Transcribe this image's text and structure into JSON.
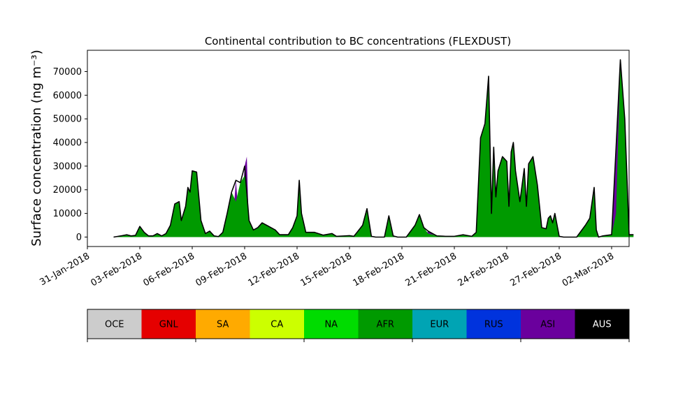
{
  "chart_data": {
    "type": "area",
    "title": "Continental contribution to BC concentrations (FLEXDUST)",
    "ylabel": "Surface concentration (ng m⁻³)",
    "xlabel": "",
    "ylim": [
      -4000,
      79000
    ],
    "xlim": [
      "2018-01-31",
      "2018-03-03"
    ],
    "yticks": [
      0,
      10000,
      20000,
      30000,
      40000,
      50000,
      60000,
      70000
    ],
    "xticks": [
      "31-Jan-2018",
      "03-Feb-2018",
      "06-Feb-2018",
      "09-Feb-2018",
      "12-Feb-2018",
      "15-Feb-2018",
      "18-Feb-2018",
      "21-Feb-2018",
      "24-Feb-2018",
      "27-Feb-2018",
      "02-Mar-2018"
    ],
    "xtick_dates": [
      "2018-01-31",
      "2018-02-03",
      "2018-02-06",
      "2018-02-09",
      "2018-02-12",
      "2018-02-15",
      "2018-02-18",
      "2018-02-21",
      "2018-02-24",
      "2018-02-27",
      "2018-03-02"
    ],
    "series": [
      {
        "name": "AFR",
        "color": "#009a00",
        "points": [
          [
            "2018-02-01T12:00",
            0
          ],
          [
            "2018-02-02T00:00",
            600
          ],
          [
            "2018-02-02T06:00",
            1000
          ],
          [
            "2018-02-02T12:00",
            500
          ],
          [
            "2018-02-02T18:00",
            700
          ],
          [
            "2018-02-03T00:00",
            4500
          ],
          [
            "2018-02-03T06:00",
            2000
          ],
          [
            "2018-02-03T12:00",
            500
          ],
          [
            "2018-02-03T18:00",
            500
          ],
          [
            "2018-02-04T00:00",
            1500
          ],
          [
            "2018-02-04T06:00",
            500
          ],
          [
            "2018-02-04T12:00",
            1500
          ],
          [
            "2018-02-04T18:00",
            5000
          ],
          [
            "2018-02-05T00:00",
            14000
          ],
          [
            "2018-02-05T06:00",
            15000
          ],
          [
            "2018-02-05T09:00",
            7000
          ],
          [
            "2018-02-05T15:00",
            13000
          ],
          [
            "2018-02-05T18:00",
            21000
          ],
          [
            "2018-02-05T21:00",
            19000
          ],
          [
            "2018-02-06T00:00",
            28000
          ],
          [
            "2018-02-06T06:00",
            27500
          ],
          [
            "2018-02-06T12:00",
            7000
          ],
          [
            "2018-02-06T18:00",
            1500
          ],
          [
            "2018-02-07T00:00",
            2500
          ],
          [
            "2018-02-07T06:00",
            500
          ],
          [
            "2018-02-07T12:00",
            200
          ],
          [
            "2018-02-07T18:00",
            2000
          ],
          [
            "2018-02-08T00:00",
            10000
          ],
          [
            "2018-02-08T06:00",
            19000
          ],
          [
            "2018-02-08T12:00",
            15000
          ],
          [
            "2018-02-08T18:00",
            23000
          ],
          [
            "2018-02-09T00:00",
            26000
          ],
          [
            "2018-02-09T06:00",
            7000
          ],
          [
            "2018-02-09T12:00",
            3000
          ],
          [
            "2018-02-09T18:00",
            4000
          ],
          [
            "2018-02-10T00:00",
            6000
          ],
          [
            "2018-02-10T06:00",
            5000
          ],
          [
            "2018-02-10T18:00",
            3000
          ],
          [
            "2018-02-11T00:00",
            1000
          ],
          [
            "2018-02-11T12:00",
            1000
          ],
          [
            "2018-02-11T18:00",
            4000
          ],
          [
            "2018-02-12T00:00",
            9000
          ],
          [
            "2018-02-12T03:00",
            24000
          ],
          [
            "2018-02-12T06:00",
            10000
          ],
          [
            "2018-02-12T12:00",
            2000
          ],
          [
            "2018-02-13T00:00",
            2000
          ],
          [
            "2018-02-13T12:00",
            800
          ],
          [
            "2018-02-14T00:00",
            1500
          ],
          [
            "2018-02-14T06:00",
            300
          ],
          [
            "2018-02-14T18:00",
            500
          ],
          [
            "2018-02-15T00:00",
            600
          ],
          [
            "2018-02-15T06:00",
            300
          ],
          [
            "2018-02-15T18:00",
            5000
          ],
          [
            "2018-02-16T00:00",
            12000
          ],
          [
            "2018-02-16T06:00",
            300
          ],
          [
            "2018-02-16T12:00",
            0
          ],
          [
            "2018-02-17T00:00",
            0
          ],
          [
            "2018-02-17T06:00",
            9000
          ],
          [
            "2018-02-17T12:00",
            500
          ],
          [
            "2018-02-17T18:00",
            0
          ],
          [
            "2018-02-18T06:00",
            0
          ],
          [
            "2018-02-18T18:00",
            5000
          ],
          [
            "2018-02-19T00:00",
            9500
          ],
          [
            "2018-02-19T06:00",
            4000
          ],
          [
            "2018-02-19T12:00",
            1500
          ],
          [
            "2018-02-20T00:00",
            500
          ],
          [
            "2018-02-20T12:00",
            300
          ],
          [
            "2018-02-21T00:00",
            300
          ],
          [
            "2018-02-21T12:00",
            1000
          ],
          [
            "2018-02-22T00:00",
            300
          ],
          [
            "2018-02-22T06:00",
            2000
          ],
          [
            "2018-02-22T12:00",
            42000
          ],
          [
            "2018-02-22T18:00",
            47000
          ],
          [
            "2018-02-22T23:00",
            68000
          ],
          [
            "2018-02-23T03:00",
            10000
          ],
          [
            "2018-02-23T06:00",
            38000
          ],
          [
            "2018-02-23T09:00",
            17000
          ],
          [
            "2018-02-23T12:00",
            28000
          ],
          [
            "2018-02-23T18:00",
            34000
          ],
          [
            "2018-02-24T00:00",
            32000
          ],
          [
            "2018-02-24T03:00",
            13000
          ],
          [
            "2018-02-24T06:00",
            36000
          ],
          [
            "2018-02-24T09:00",
            40000
          ],
          [
            "2018-02-24T12:00",
            28000
          ],
          [
            "2018-02-24T18:00",
            15000
          ],
          [
            "2018-02-25T00:00",
            29000
          ],
          [
            "2018-02-25T03:00",
            13000
          ],
          [
            "2018-02-25T06:00",
            31000
          ],
          [
            "2018-02-25T12:00",
            34000
          ],
          [
            "2018-02-25T18:00",
            22000
          ],
          [
            "2018-02-26T00:00",
            4000
          ],
          [
            "2018-02-26T06:00",
            3500
          ],
          [
            "2018-02-26T09:00",
            8000
          ],
          [
            "2018-02-26T12:00",
            9000
          ],
          [
            "2018-02-26T15:00",
            6000
          ],
          [
            "2018-02-26T18:00",
            10000
          ],
          [
            "2018-02-27T00:00",
            300
          ],
          [
            "2018-02-27T06:00",
            0
          ],
          [
            "2018-02-28T00:00",
            0
          ],
          [
            "2018-02-28T12:00",
            5000
          ],
          [
            "2018-02-28T18:00",
            8000
          ],
          [
            "2018-03-01T00:00",
            21000
          ],
          [
            "2018-03-01T03:00",
            3000
          ],
          [
            "2018-03-01T06:00",
            0
          ],
          [
            "2018-03-01T12:00",
            500
          ],
          [
            "2018-03-02T00:00",
            1000
          ],
          [
            "2018-03-02T06:00",
            10000
          ],
          [
            "2018-03-02T12:00",
            74000
          ],
          [
            "2018-03-02T18:00",
            50000
          ],
          [
            "2018-03-03T00:00",
            1000
          ],
          [
            "2018-03-03T06:00",
            1000
          ]
        ]
      },
      {
        "name": "ASI",
        "color": "#6a009d",
        "points": [
          [
            "2018-02-05T00:00",
            0
          ],
          [
            "2018-02-08T06:00",
            0
          ],
          [
            "2018-02-08T12:00",
            24000
          ],
          [
            "2018-02-08T18:00",
            0
          ],
          [
            "2018-02-09T00:00",
            30000
          ],
          [
            "2018-02-09T03:00",
            34000
          ],
          [
            "2018-02-09T06:00",
            0
          ],
          [
            "2018-02-19T06:00",
            0
          ],
          [
            "2018-02-19T12:00",
            2500
          ],
          [
            "2018-02-20T00:00",
            0
          ],
          [
            "2018-02-22T12:00",
            0
          ],
          [
            "2018-02-22T18:00",
            48000
          ],
          [
            "2018-02-23T00:00",
            0
          ],
          [
            "2018-03-02T00:00",
            0
          ],
          [
            "2018-03-02T12:00",
            75000
          ],
          [
            "2018-03-02T18:00",
            0
          ],
          [
            "2018-03-03T06:00",
            0
          ]
        ]
      }
    ],
    "legend_placement": "bottom colorbar",
    "legend": [
      {
        "label": "OCE",
        "color": "#cccccc"
      },
      {
        "label": "GNL",
        "color": "#e50000"
      },
      {
        "label": "SA",
        "color": "#ffaa00"
      },
      {
        "label": "CA",
        "color": "#ccff00"
      },
      {
        "label": "NA",
        "color": "#00dc00"
      },
      {
        "label": "AFR",
        "color": "#009a00"
      },
      {
        "label": "EUR",
        "color": "#00a4b4"
      },
      {
        "label": "RUS",
        "color": "#0033dd"
      },
      {
        "label": "ASI",
        "color": "#6a009d"
      },
      {
        "label": "AUS",
        "color": "#000000",
        "text_color": "#ffffff"
      }
    ],
    "grid": false
  }
}
